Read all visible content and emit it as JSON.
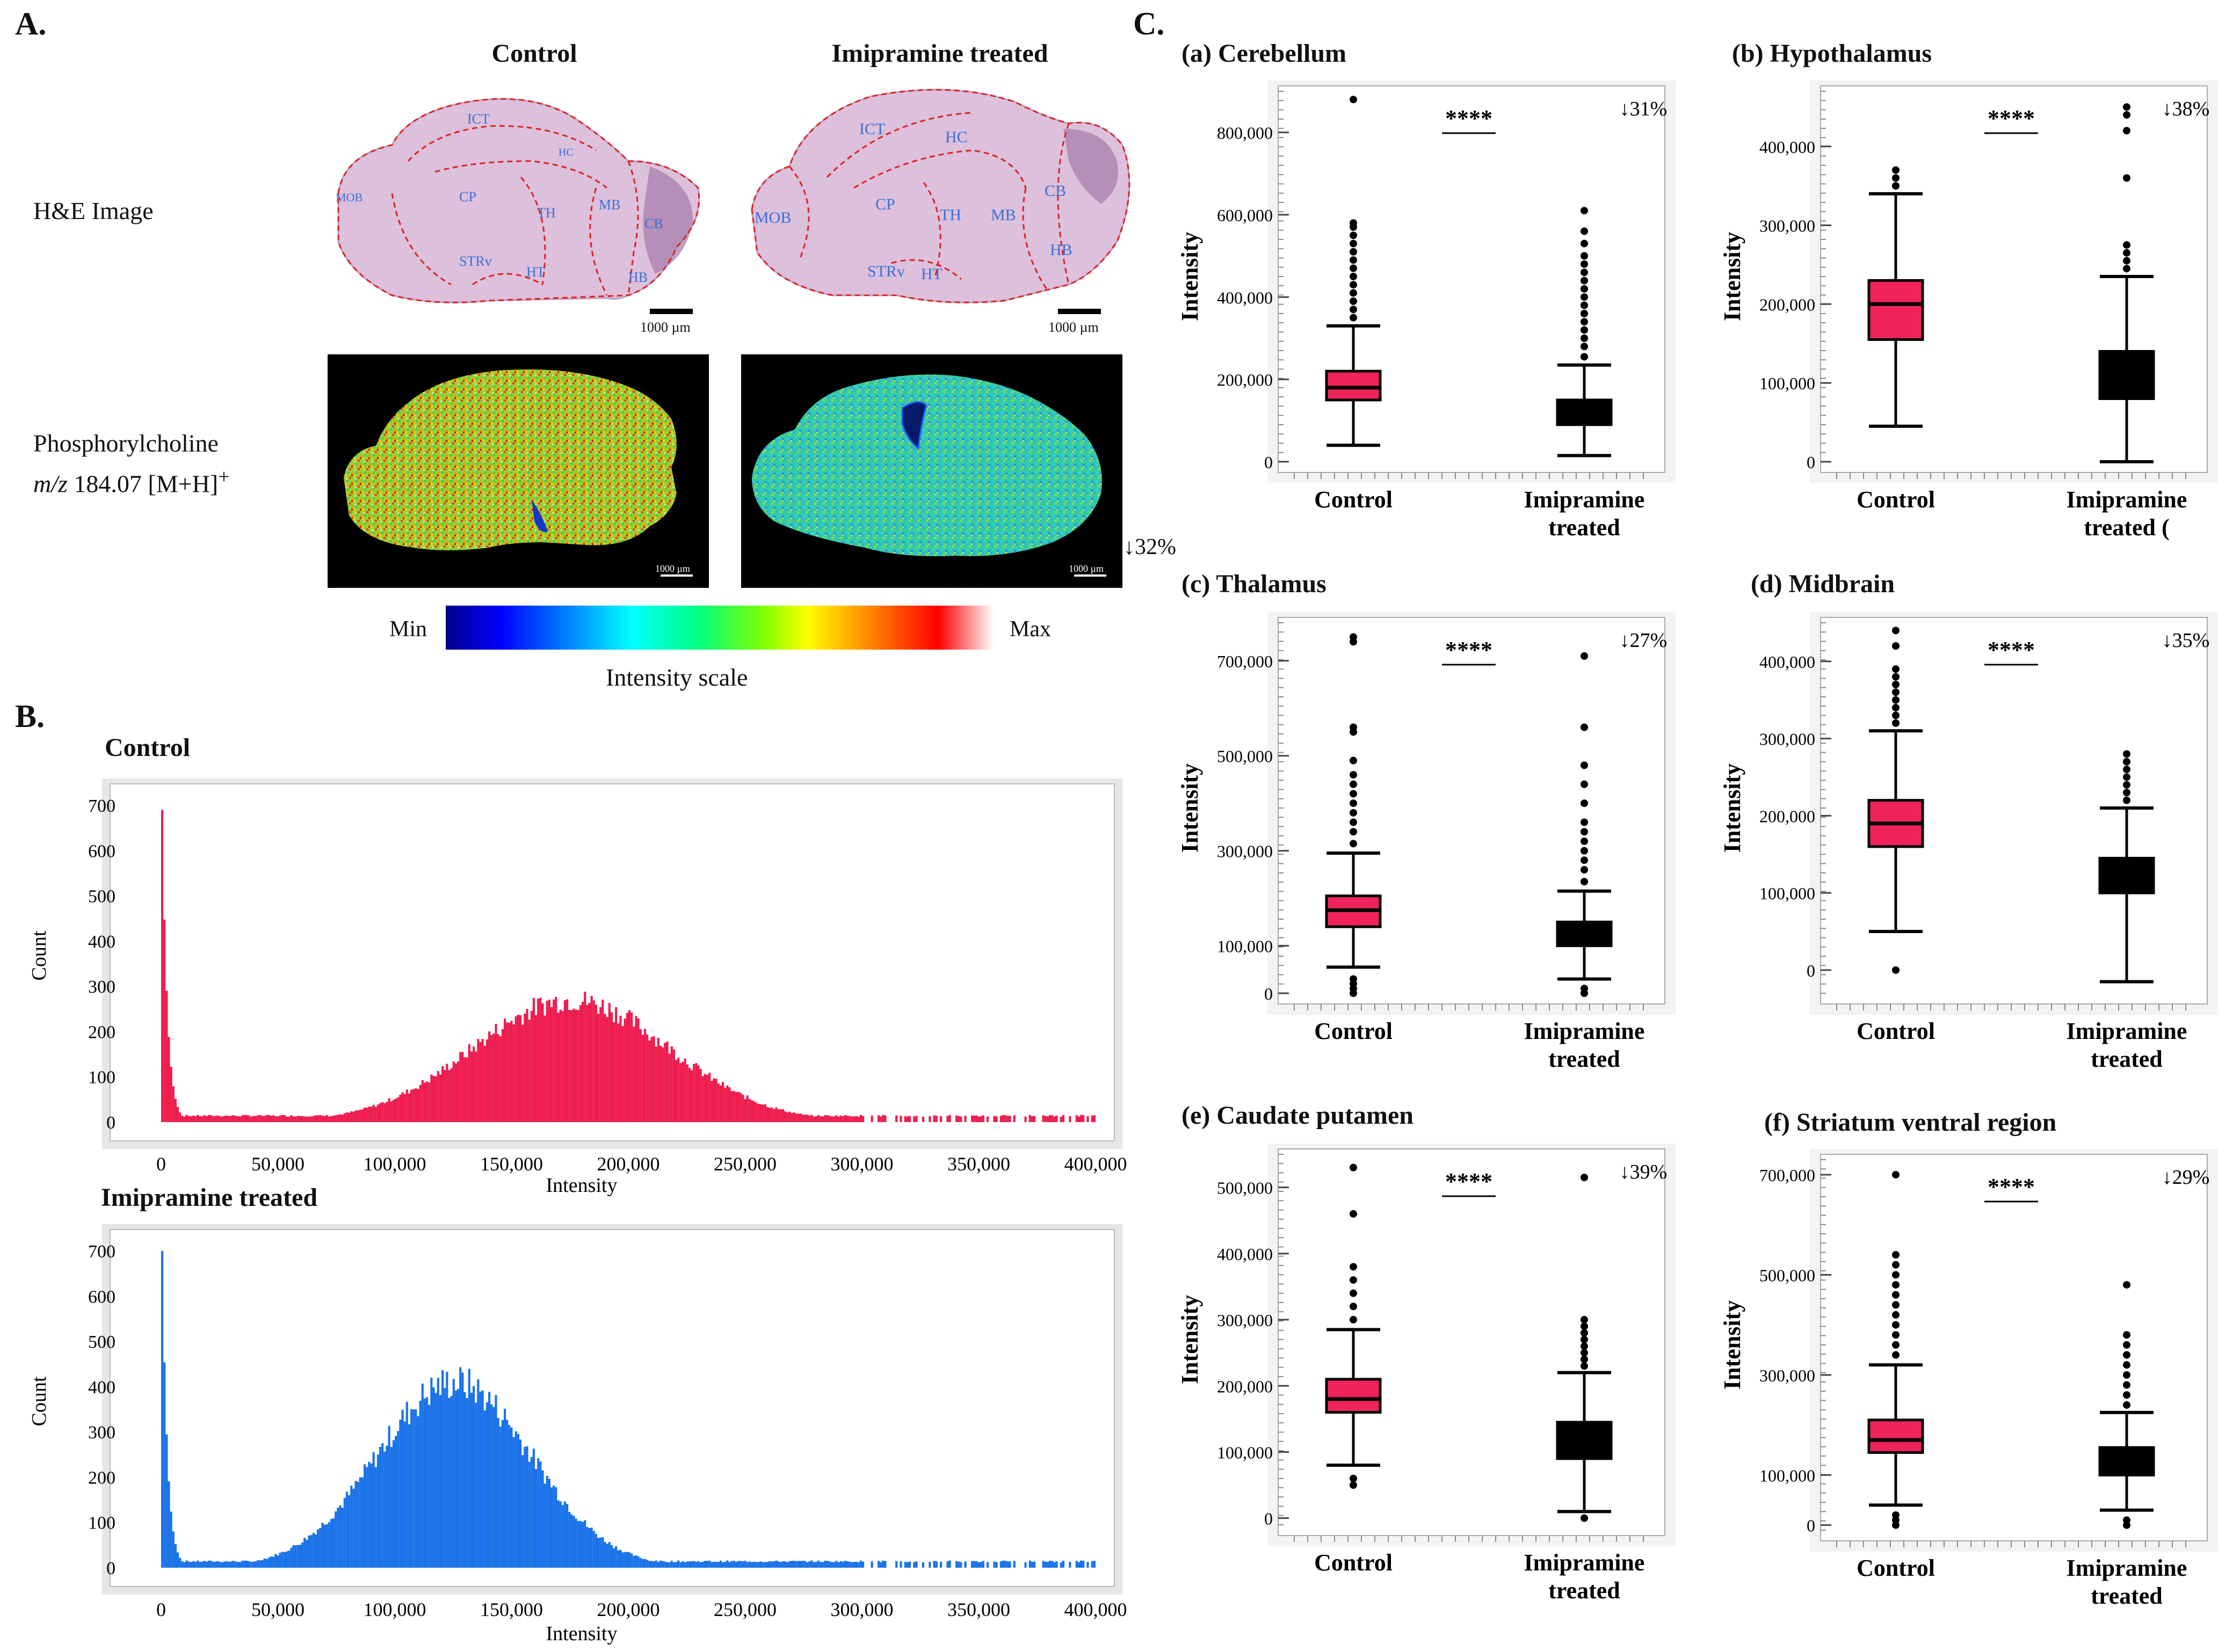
{
  "panels": {
    "a_label": "A.",
    "b_label": "B.",
    "c_label": "C."
  },
  "panel_a": {
    "col_control": "Control",
    "col_treated": "Imipramine treated",
    "row_he": "H&E Image",
    "row_ms_line1": "Phosphorylcholine",
    "row_ms_italic": "m/z",
    "row_ms_mz": "184.07 [M+H]",
    "row_ms_sup": "+",
    "scalebar": "1000 µm",
    "ms_scalebar": "1000 µm",
    "decrease": "↓32%",
    "scale_min": "Min",
    "scale_max": "Max",
    "scale_label": "Intensity scale",
    "regions_control": [
      "ICT",
      "HC",
      "MOB",
      "CP",
      "TH",
      "MB",
      "CB",
      "STRv",
      "HT",
      "HB"
    ],
    "regions_treated": [
      "ICT",
      "HC",
      "MOB",
      "CP",
      "TH",
      "MB",
      "CB",
      "STRv",
      "HT",
      "HB"
    ]
  },
  "colors": {
    "control": "#ee1c4e",
    "treated": "#1a73e8",
    "box_control": "#f0245a",
    "box_treated": "#000000",
    "region_line": "#e02020",
    "region_text": "#3a6fd8",
    "tissue_he": "#d9b8d9"
  },
  "chart_data": [
    {
      "id": "hist-control",
      "type": "bar",
      "title": "Control",
      "xlabel": "Intensity",
      "ylabel": "Count",
      "xlim": [
        0,
        400000
      ],
      "ylim": [
        0,
        700
      ],
      "xticks": [
        "0",
        "50,000",
        "100,000",
        "150,000",
        "200,000",
        "250,000",
        "300,000",
        "350,000",
        "400,000"
      ],
      "yticks": [
        "0",
        "100",
        "200",
        "300",
        "400",
        "500",
        "600",
        "700"
      ],
      "spike": {
        "x": 0,
        "count": 690
      },
      "peak": {
        "x": 175000,
        "count": 270,
        "sd": 42000
      },
      "tail_end": 400000
    },
    {
      "id": "hist-treated",
      "type": "bar",
      "title": "Imipramine treated",
      "xlabel": "Intensity",
      "ylabel": "Count",
      "xlim": [
        0,
        400000
      ],
      "ylim": [
        0,
        700
      ],
      "xticks": [
        "0",
        "50,000",
        "100,000",
        "150,000",
        "200,000",
        "250,000",
        "300,000",
        "350,000",
        "400,000"
      ],
      "yticks": [
        "0",
        "100",
        "200",
        "300",
        "400",
        "500",
        "600",
        "700"
      ],
      "spike": {
        "x": 0,
        "count": 700
      },
      "peak": {
        "x": 125000,
        "count": 410,
        "sd": 33000
      },
      "tail_end": 400000
    },
    {
      "id": "box-a",
      "type": "box",
      "title": "(a) Cerebellum",
      "ylabel": "Intensity",
      "ylim": [
        0,
        900000
      ],
      "yticks": [
        0,
        200000,
        400000,
        600000,
        800000
      ],
      "ytick_labels": [
        "0",
        "200,000",
        "400,000",
        "600,000",
        "800,000"
      ],
      "categories": [
        "Control",
        "Imipramine\ntreated"
      ],
      "series": [
        {
          "name": "Control",
          "q1": 150000,
          "median": 180000,
          "q3": 220000,
          "whisker_low": 40000,
          "whisker_high": 330000,
          "outliers": [
            350000,
            370000,
            390000,
            410000,
            430000,
            450000,
            470000,
            490000,
            510000,
            530000,
            550000,
            570000,
            580000,
            880000
          ]
        },
        {
          "name": "Imipramine treated",
          "q1": 90000,
          "median": 110000,
          "q3": 150000,
          "whisker_low": 15000,
          "whisker_high": 235000,
          "outliers": [
            255000,
            280000,
            300000,
            320000,
            340000,
            360000,
            380000,
            400000,
            420000,
            440000,
            460000,
            480000,
            500000,
            530000,
            560000,
            610000
          ]
        }
      ],
      "significance": "****",
      "decrease": "↓31%"
    },
    {
      "id": "box-b",
      "type": "box",
      "title": "(b) Hypothalamus",
      "ylabel": "Intensity",
      "ylim": [
        0,
        470000
      ],
      "yticks": [
        0,
        100000,
        200000,
        300000,
        400000
      ],
      "ytick_labels": [
        "0",
        "100,000",
        "200,000",
        "300,000",
        "400,000"
      ],
      "categories": [
        "Control",
        "Imipramine\ntreated ("
      ],
      "series": [
        {
          "name": "Control",
          "q1": 155000,
          "median": 200000,
          "q3": 230000,
          "whisker_low": 45000,
          "whisker_high": 340000,
          "outliers": [
            350000,
            360000,
            370000
          ]
        },
        {
          "name": "Imipramine treated",
          "q1": 80000,
          "median": 100000,
          "q3": 140000,
          "whisker_low": 0,
          "whisker_high": 235000,
          "outliers": [
            245000,
            255000,
            265000,
            275000,
            360000,
            420000,
            440000,
            450000
          ]
        }
      ],
      "significance": "****",
      "decrease": "↓38%"
    },
    {
      "id": "box-c",
      "type": "box",
      "title": "(c) Thalamus",
      "ylabel": "Intensity",
      "ylim": [
        0,
        780000
      ],
      "yticks": [
        0,
        100000,
        300000,
        500000,
        700000
      ],
      "ytick_labels": [
        "0",
        "100,000",
        "300,000",
        "500,000",
        "700,000"
      ],
      "categories": [
        "Control",
        "Imipramine\ntreated"
      ],
      "series": [
        {
          "name": "Control",
          "q1": 140000,
          "median": 175000,
          "q3": 205000,
          "whisker_low": 55000,
          "whisker_high": 295000,
          "outliers": [
            0,
            10000,
            20000,
            30000,
            315000,
            340000,
            360000,
            380000,
            400000,
            420000,
            440000,
            460000,
            490000,
            550000,
            560000,
            740000,
            750000
          ]
        },
        {
          "name": "Imipramine treated",
          "q1": 100000,
          "median": 125000,
          "q3": 150000,
          "whisker_low": 30000,
          "whisker_high": 215000,
          "outliers": [
            0,
            10000,
            235000,
            260000,
            280000,
            300000,
            320000,
            340000,
            360000,
            400000,
            440000,
            480000,
            560000,
            710000
          ]
        }
      ],
      "significance": "****",
      "decrease": "↓27%"
    },
    {
      "id": "box-d",
      "type": "box",
      "title": "(d) Midbrain",
      "ylabel": "Intensity",
      "ylim": [
        -30000,
        450000
      ],
      "yticks": [
        0,
        100000,
        200000,
        300000,
        400000
      ],
      "ytick_labels": [
        "0",
        "100,000",
        "200,000",
        "300,000",
        "400,000"
      ],
      "categories": [
        "Control",
        "Imipramine\ntreated"
      ],
      "series": [
        {
          "name": "Control",
          "q1": 160000,
          "median": 190000,
          "q3": 220000,
          "whisker_low": 50000,
          "whisker_high": 310000,
          "outliers": [
            0,
            320000,
            330000,
            340000,
            350000,
            360000,
            370000,
            380000,
            390000,
            420000,
            440000
          ]
        },
        {
          "name": "Imipramine treated",
          "q1": 100000,
          "median": 120000,
          "q3": 145000,
          "whisker_low": -15000,
          "whisker_high": 210000,
          "outliers": [
            220000,
            230000,
            240000,
            250000,
            260000,
            270000,
            280000
          ]
        }
      ],
      "significance": "****",
      "decrease": "↓35%"
    },
    {
      "id": "box-e",
      "type": "box",
      "title": "(e) Caudate putamen",
      "ylabel": "Intensity",
      "ylim": [
        -10000,
        550000
      ],
      "yticks": [
        0,
        100000,
        200000,
        300000,
        400000,
        500000
      ],
      "ytick_labels": [
        "0",
        "100,000",
        "200,000",
        "300,000",
        "400,000",
        "500,000"
      ],
      "categories": [
        "Control",
        "Imipramine\ntreated"
      ],
      "series": [
        {
          "name": "Control",
          "q1": 160000,
          "median": 180000,
          "q3": 210000,
          "whisker_low": 80000,
          "whisker_high": 285000,
          "outliers": [
            50000,
            60000,
            300000,
            320000,
            340000,
            360000,
            380000,
            460000,
            530000
          ]
        },
        {
          "name": "Imipramine treated",
          "q1": 90000,
          "median": 110000,
          "q3": 145000,
          "whisker_low": 10000,
          "whisker_high": 220000,
          "outliers": [
            0,
            230000,
            240000,
            250000,
            260000,
            270000,
            280000,
            290000,
            300000,
            515000
          ]
        }
      ],
      "significance": "****",
      "decrease": "↓39%"
    },
    {
      "id": "box-f",
      "type": "box",
      "title": "(f) Striatum ventral region",
      "ylabel": "Intensity",
      "ylim": [
        -10000,
        730000
      ],
      "yticks": [
        0,
        100000,
        300000,
        500000,
        700000
      ],
      "ytick_labels": [
        "0",
        "100,000",
        "300,000",
        "500,000",
        "700,000"
      ],
      "categories": [
        "Control",
        "Imipramine\ntreated"
      ],
      "series": [
        {
          "name": "Control",
          "q1": 145000,
          "median": 170000,
          "q3": 210000,
          "whisker_low": 40000,
          "whisker_high": 320000,
          "outliers": [
            0,
            10000,
            20000,
            340000,
            360000,
            380000,
            400000,
            420000,
            440000,
            460000,
            480000,
            500000,
            520000,
            540000,
            700000
          ]
        },
        {
          "name": "Imipramine treated",
          "q1": 100000,
          "median": 120000,
          "q3": 155000,
          "whisker_low": 30000,
          "whisker_high": 225000,
          "outliers": [
            0,
            10000,
            240000,
            260000,
            280000,
            300000,
            320000,
            340000,
            360000,
            380000,
            480000
          ]
        }
      ],
      "significance": "****",
      "decrease": "↓29%"
    }
  ]
}
